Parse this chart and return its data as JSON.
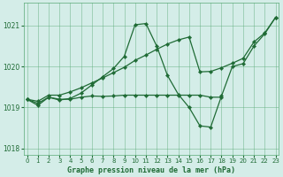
{
  "title": "Graphe pression niveau de la mer (hPa)",
  "bg_color": "#d4ede8",
  "grid_color": "#5aaa77",
  "line_color": "#1f6b35",
  "xlim": [
    -0.3,
    23.3
  ],
  "ylim": [
    1017.85,
    1021.55
  ],
  "yticks": [
    1018,
    1019,
    1020,
    1021
  ],
  "xticks": [
    0,
    1,
    2,
    3,
    4,
    5,
    6,
    7,
    8,
    9,
    10,
    11,
    12,
    13,
    14,
    15,
    16,
    17,
    18,
    19,
    20,
    21,
    22,
    23
  ],
  "line_flat_x": [
    0,
    1,
    2,
    3,
    4,
    5,
    6,
    7,
    8,
    9,
    10,
    11,
    12,
    13,
    14,
    15,
    16,
    17,
    18
  ],
  "line_flat_y": [
    1019.2,
    1019.1,
    1019.25,
    1019.2,
    1019.2,
    1019.25,
    1019.28,
    1019.27,
    1019.28,
    1019.3,
    1019.3,
    1019.3,
    1019.3,
    1019.3,
    1019.3,
    1019.3,
    1019.3,
    1019.25,
    1019.25
  ],
  "line_wave_x": [
    0,
    1,
    2,
    3,
    4,
    5,
    6,
    7,
    8,
    9,
    10,
    11,
    12,
    13,
    14,
    15,
    16,
    17,
    18,
    19,
    20,
    21,
    22,
    23
  ],
  "line_wave_y": [
    1019.2,
    1019.05,
    1019.25,
    1019.18,
    1019.22,
    1019.35,
    1019.55,
    1019.75,
    1019.95,
    1020.25,
    1021.02,
    1021.05,
    1020.5,
    1019.78,
    1019.32,
    1019.0,
    1018.55,
    1018.52,
    1019.28,
    1020.0,
    1020.07,
    1020.5,
    1020.8,
    1021.2
  ],
  "line_diag_x": [
    0,
    1,
    2,
    3,
    4,
    5,
    6,
    7,
    8,
    9,
    10,
    11,
    12,
    13,
    14,
    15,
    16,
    17,
    18,
    19,
    20,
    21,
    22,
    23
  ],
  "line_diag_y": [
    1019.2,
    1019.15,
    1019.3,
    1019.3,
    1019.38,
    1019.48,
    1019.6,
    1019.72,
    1019.85,
    1019.98,
    1020.15,
    1020.28,
    1020.42,
    1020.55,
    1020.65,
    1020.72,
    1019.87,
    1019.88,
    1019.97,
    1020.08,
    1020.2,
    1020.6,
    1020.82,
    1021.2
  ]
}
